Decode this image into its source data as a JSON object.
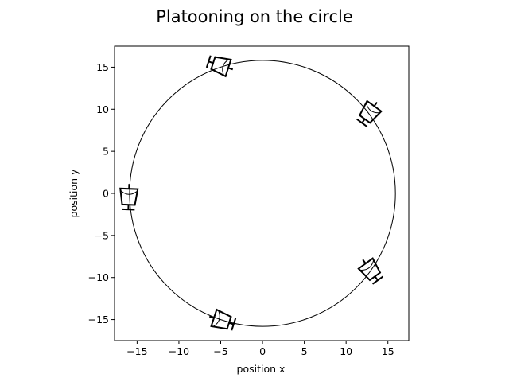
{
  "chart_data": {
    "type": "scatter",
    "title": "Platooning on the circle",
    "xlabel": "position x",
    "ylabel": "position y",
    "xlim": [
      -17.7,
      17.5
    ],
    "ylim": [
      -17.5,
      17.5
    ],
    "xticks": [
      -15,
      -10,
      -5,
      0,
      5,
      10,
      15
    ],
    "yticks": [
      -15,
      -10,
      -5,
      0,
      5,
      10,
      15
    ],
    "xtick_labels": [
      "−15",
      "−10",
      "−5",
      "0",
      "5",
      "10",
      "15"
    ],
    "ytick_labels": [
      "−15",
      "−10",
      "−5",
      "0",
      "5",
      "10",
      "15"
    ],
    "grid": false,
    "circle": {
      "center": [
        0,
        0
      ],
      "radius": 15.9,
      "color": "#000000"
    },
    "series": [
      {
        "marker": "car",
        "color": "#000000",
        "points": [
          {
            "x": -5.0,
            "y": 15.2,
            "heading": -162
          },
          {
            "x": 12.8,
            "y": 9.6,
            "heading": 126
          },
          {
            "x": -16.0,
            "y": -0.4,
            "heading": 92
          },
          {
            "x": -4.9,
            "y": -15.1,
            "heading": 18
          },
          {
            "x": 12.9,
            "y": -9.1,
            "heading": 54
          }
        ]
      }
    ]
  }
}
